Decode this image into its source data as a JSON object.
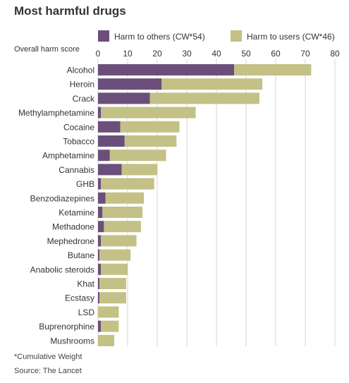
{
  "chart_data": {
    "type": "bar",
    "orientation": "horizontal",
    "stacked": true,
    "title": "Most harmful drugs",
    "xlabel": "Overall harm score",
    "xlim": [
      0,
      80
    ],
    "xticks": [
      0,
      10,
      20,
      30,
      40,
      50,
      60,
      70,
      80
    ],
    "grid": true,
    "legend_position": "top",
    "categories": [
      "Alcohol",
      "Heroin",
      "Crack",
      "Methylamphetamine",
      "Cocaine",
      "Tobacco",
      "Amphetamine",
      "Cannabis",
      "GHB",
      "Benzodiazepines",
      "Ketamine",
      "Methadone",
      "Mephedrone",
      "Butane",
      "Anabolic steroids",
      "Khat",
      "Ecstasy",
      "LSD",
      "Buprenorphine",
      "Mushrooms"
    ],
    "series": [
      {
        "name": "Harm to others (CW*54)",
        "color": "#6b4f7a",
        "values": [
          46,
          21.5,
          17.5,
          1,
          7.5,
          9,
          4,
          8,
          1,
          2.5,
          1.5,
          2,
          1,
          0.5,
          1,
          0.5,
          0.5,
          0,
          1,
          0
        ]
      },
      {
        "name": "Harm to users (CW*46)",
        "color": "#c3c185",
        "values": [
          26,
          34,
          37,
          32,
          20,
          17.5,
          19,
          12,
          18,
          13,
          13.5,
          12.5,
          12,
          10.5,
          9,
          9,
          9,
          7,
          6,
          5.5
        ]
      }
    ]
  },
  "footnotes": {
    "cw": "*Cumulative Weight",
    "source": "Source: The Lancet"
  }
}
